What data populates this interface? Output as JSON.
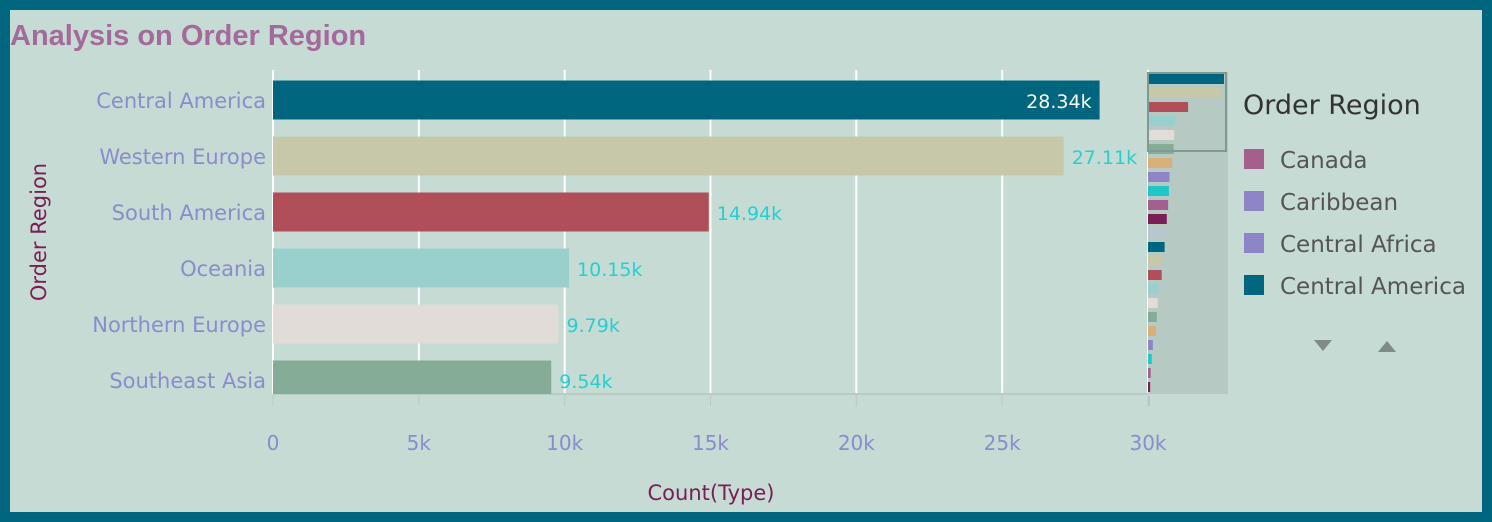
{
  "title": "Analysis on Order Region",
  "colors": {
    "border": "#006680",
    "background": "#c5dbd4",
    "title": "#a46a9b",
    "category_label": "#8a8ccc",
    "value_label": "#27cfd1",
    "value_label_inside": "#ffffff",
    "axis_title": "#7a1e55",
    "grid": "#ffffff"
  },
  "legend": {
    "title": "Order Region",
    "items": [
      {
        "label": "Canada",
        "color": "#a45f8f"
      },
      {
        "label": "Caribbean",
        "color": "#8e85c8"
      },
      {
        "label": "Central Africa",
        "color": "#8e85c8"
      },
      {
        "label": "Central America",
        "color": "#006680"
      }
    ],
    "nav_down_icon": "triangle-down-icon",
    "nav_up_icon": "triangle-up-icon"
  },
  "chart_data": {
    "type": "bar",
    "orientation": "horizontal",
    "title": "Analysis on Order Region",
    "xlabel": "Count(Type)",
    "ylabel": "Order Region",
    "xlim": [
      0,
      30000
    ],
    "xticks": [
      {
        "value": 0,
        "label": "0"
      },
      {
        "value": 5000,
        "label": "5k"
      },
      {
        "value": 10000,
        "label": "10k"
      },
      {
        "value": 15000,
        "label": "15k"
      },
      {
        "value": 20000,
        "label": "20k"
      },
      {
        "value": 25000,
        "label": "25k"
      },
      {
        "value": 30000,
        "label": "30k"
      }
    ],
    "grid": true,
    "legend_position": "right",
    "bars": [
      {
        "category": "Central America",
        "value": 28340,
        "label": "28.34k",
        "color": "#006680"
      },
      {
        "category": "Western Europe",
        "value": 27110,
        "label": "27.11k",
        "color": "#c7c8a9"
      },
      {
        "category": "South America",
        "value": 14940,
        "label": "14.94k",
        "color": "#b04e5a"
      },
      {
        "category": "Oceania",
        "value": 10150,
        "label": "10.15k",
        "color": "#99d0cd"
      },
      {
        "category": "Northern Europe",
        "value": 9790,
        "label": "9.79k",
        "color": "#e1dcd8"
      },
      {
        "category": "Southeast Asia",
        "value": 9540,
        "label": "9.54k",
        "color": "#84ac97"
      }
    ],
    "overview_values": [
      28340,
      27110,
      14940,
      10150,
      9790,
      9540,
      9000,
      8000,
      7800,
      7500,
      7000,
      6700,
      6200,
      5400,
      5100,
      3900,
      3600,
      3300,
      3000,
      1800,
      1400,
      1000,
      800,
      600
    ],
    "overview_colors": [
      "#006680",
      "#c7c8a9",
      "#b04e5a",
      "#99d0cd",
      "#e1dcd8",
      "#84ac97",
      "#d9b07a",
      "#8e85c8",
      "#1fc6c6",
      "#a45f8f",
      "#7a1e55",
      "#b9c6cf",
      "#006680",
      "#c7c8a9",
      "#b04e5a",
      "#99d0cd",
      "#e1dcd8",
      "#84ac97",
      "#d9b07a",
      "#8e85c8",
      "#1fc6c6",
      "#a45f8f",
      "#7a1e55",
      "#b9c6cf"
    ]
  }
}
